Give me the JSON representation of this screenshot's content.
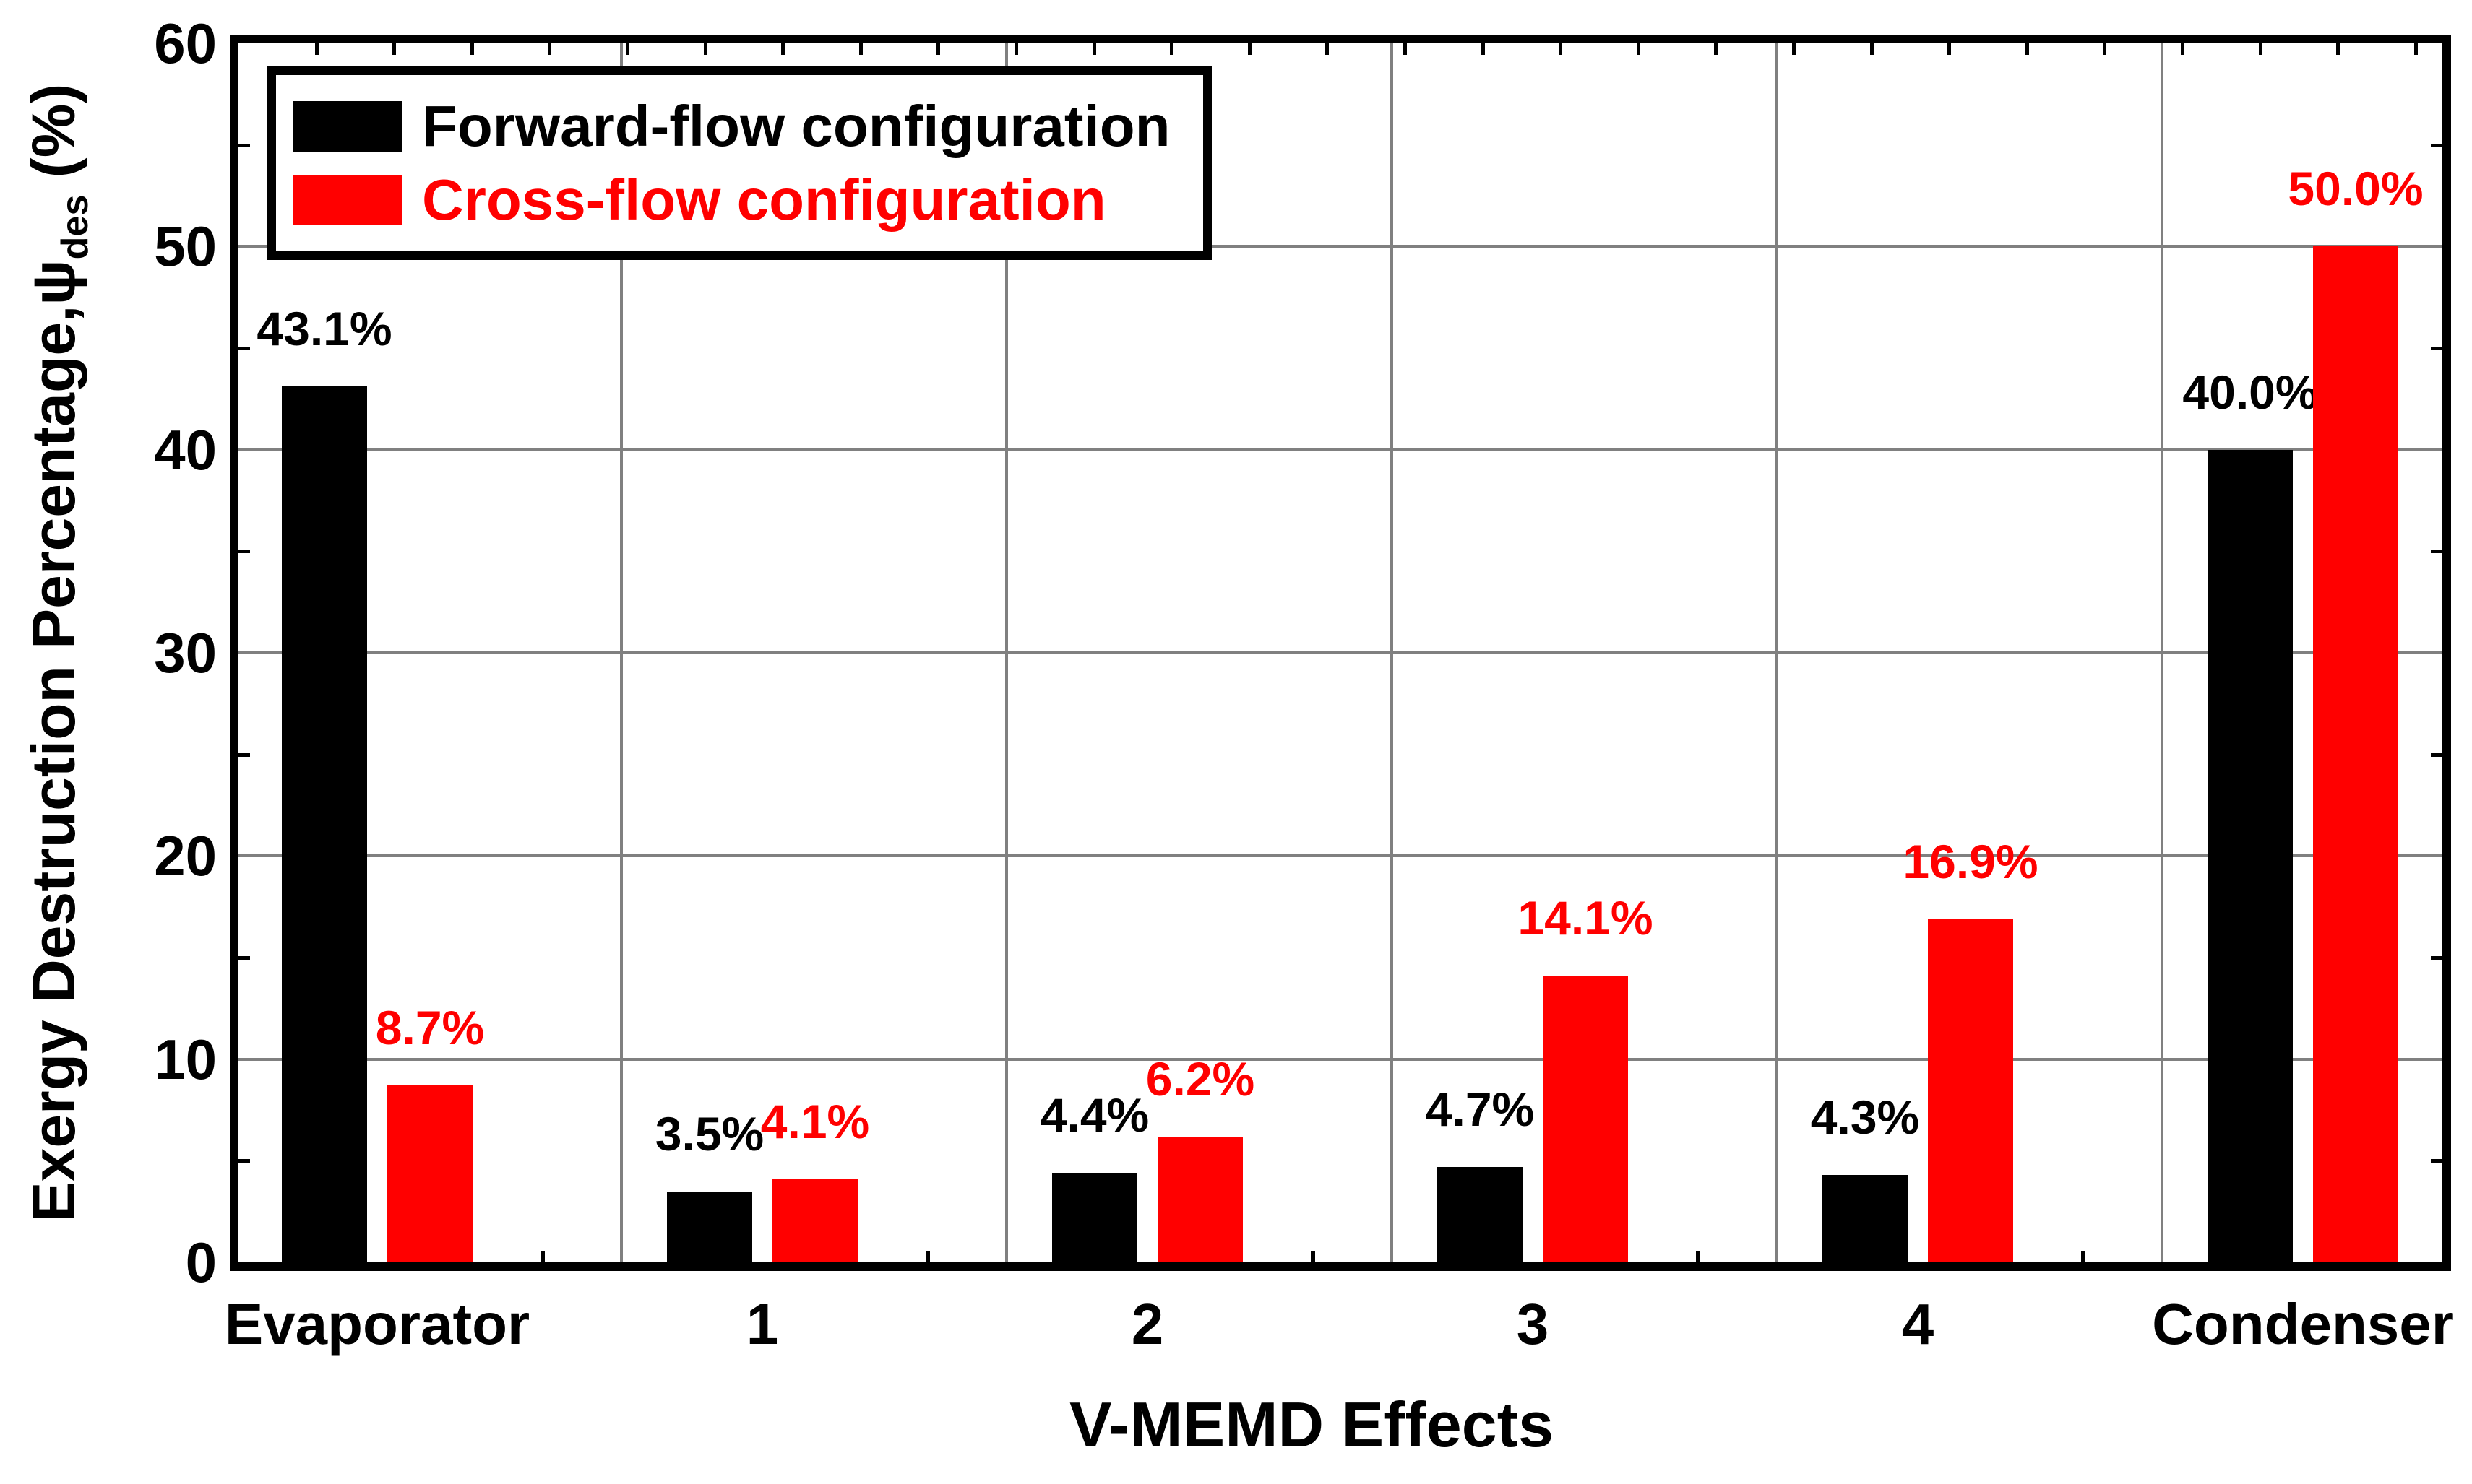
{
  "chart_data": {
    "type": "bar",
    "xlabel": "V-MEMD Effects",
    "ylabel_prefix": "Exergy Destruction Percentage,ψ",
    "ylabel_sub": "des",
    "ylabel_suffix": " (%)",
    "categories": [
      "Evaporator",
      "1",
      "2",
      "3",
      "4",
      "Condenser"
    ],
    "series": [
      {
        "name": "Forward-flow configuration",
        "color": "#000000",
        "values": [
          43.1,
          3.5,
          4.4,
          4.7,
          4.3,
          40.0
        ],
        "labels": [
          "43.1%",
          "3.5%",
          "4.4%",
          "4.7%",
          "4.3%",
          "40.0%"
        ]
      },
      {
        "name": "Cross-flow configuration",
        "color": "#ff0000",
        "values": [
          8.7,
          4.1,
          6.2,
          14.1,
          16.9,
          50.0
        ],
        "labels": [
          "8.7%",
          "4.1%",
          "6.2%",
          "14.1%",
          "16.9%",
          "50.0%"
        ]
      }
    ],
    "ylim": [
      0,
      60
    ],
    "yticks": [
      0,
      10,
      20,
      30,
      40,
      50,
      60
    ],
    "grid": true,
    "gridline_color": "#808080",
    "legend_position": "top-left"
  }
}
